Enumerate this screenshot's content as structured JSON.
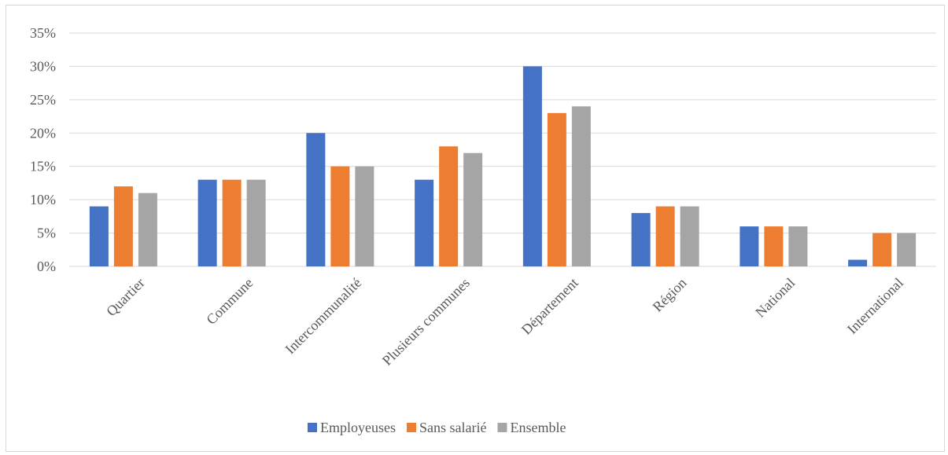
{
  "chart_data": {
    "type": "bar",
    "title": "",
    "xlabel": "",
    "ylabel": "",
    "categories": [
      "Quartier",
      "Commune",
      "Intercommunalité",
      "Plusieurs communes",
      "Département",
      "Région",
      "National",
      "International"
    ],
    "series": [
      {
        "name": "Employeuses",
        "color": "#4472c4",
        "values": [
          9,
          13,
          20,
          13,
          30,
          8,
          6,
          1
        ]
      },
      {
        "name": "Sans salarié",
        "color": "#ed7d31",
        "values": [
          12,
          13,
          15,
          18,
          23,
          9,
          6,
          5
        ]
      },
      {
        "name": "Ensemble",
        "color": "#a5a5a5",
        "values": [
          11,
          13,
          15,
          17,
          24,
          9,
          6,
          5
        ]
      }
    ],
    "ylim": [
      0,
      35
    ],
    "yticks": [
      0,
      5,
      10,
      15,
      20,
      25,
      30,
      35
    ],
    "ytick_labels": [
      "0%",
      "5%",
      "10%",
      "15%",
      "20%",
      "25%",
      "30%",
      "35%"
    ],
    "value_unit": "%",
    "grid": true,
    "legend_position": "bottom"
  }
}
